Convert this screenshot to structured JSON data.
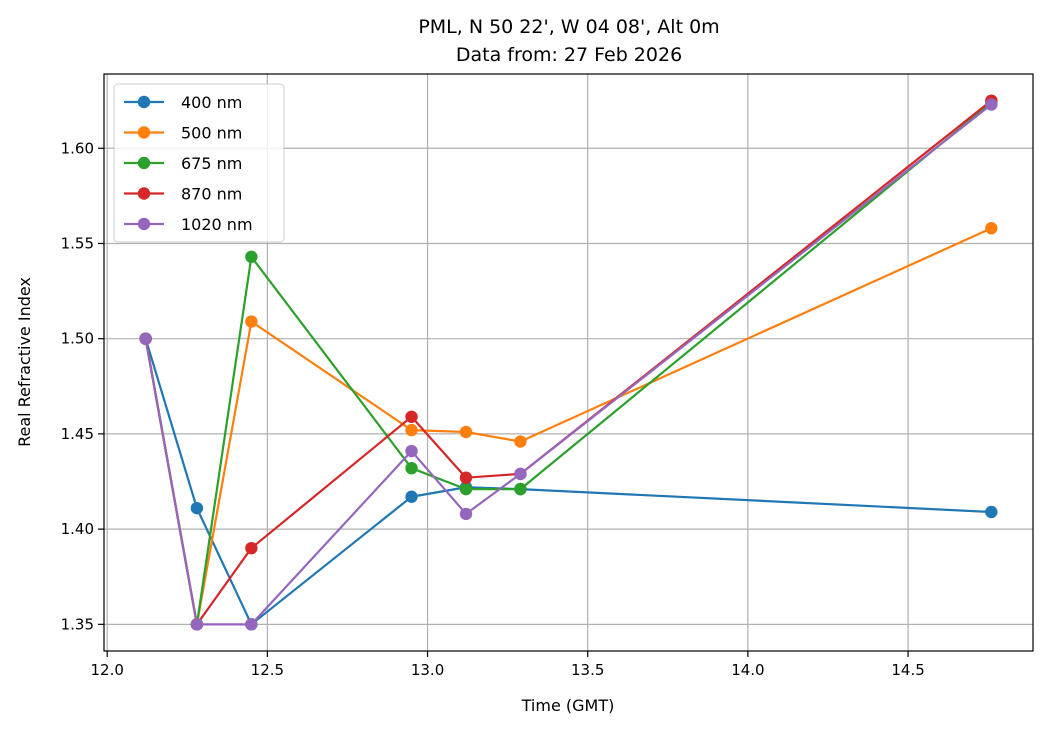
{
  "chart_data": {
    "type": "line",
    "title": "PML, N 50 22', W 04 08', Alt 0m",
    "subtitle": "Data from: 27 Feb 2026",
    "xlabel": "Time (GMT)",
    "ylabel": "Real Refractive Index",
    "xlim": [
      11.99,
      14.89
    ],
    "ylim": [
      1.336,
      1.639
    ],
    "xticks": [
      12.0,
      12.5,
      13.0,
      13.5,
      14.0,
      14.5
    ],
    "xtick_labels": [
      "12.0",
      "12.5",
      "13.0",
      "13.5",
      "14.0",
      "14.5"
    ],
    "yticks": [
      1.35,
      1.4,
      1.45,
      1.5,
      1.55,
      1.6
    ],
    "ytick_labels": [
      "1.35",
      "1.40",
      "1.45",
      "1.50",
      "1.55",
      "1.60"
    ],
    "grid": true,
    "legend_position": "top-left",
    "x": [
      12.12,
      12.28,
      12.45,
      12.95,
      13.12,
      13.29,
      14.76
    ],
    "series": [
      {
        "name": "400 nm",
        "color": "#1f77b4",
        "values": [
          1.5,
          1.411,
          1.35,
          1.417,
          1.422,
          1.421,
          1.409
        ]
      },
      {
        "name": "500 nm",
        "color": "#ff7f0e",
        "values": [
          1.5,
          1.35,
          1.509,
          1.452,
          1.451,
          1.446,
          1.558
        ]
      },
      {
        "name": "675 nm",
        "color": "#2ca02c",
        "values": [
          1.5,
          1.35,
          1.543,
          1.432,
          1.421,
          1.421,
          1.624
        ]
      },
      {
        "name": "870 nm",
        "color": "#d62728",
        "values": [
          1.5,
          1.35,
          1.39,
          1.459,
          1.427,
          1.429,
          1.625
        ]
      },
      {
        "name": "1020 nm",
        "color": "#9467bd",
        "values": [
          1.5,
          1.35,
          1.35,
          1.441,
          1.408,
          1.429,
          1.623
        ]
      }
    ]
  }
}
